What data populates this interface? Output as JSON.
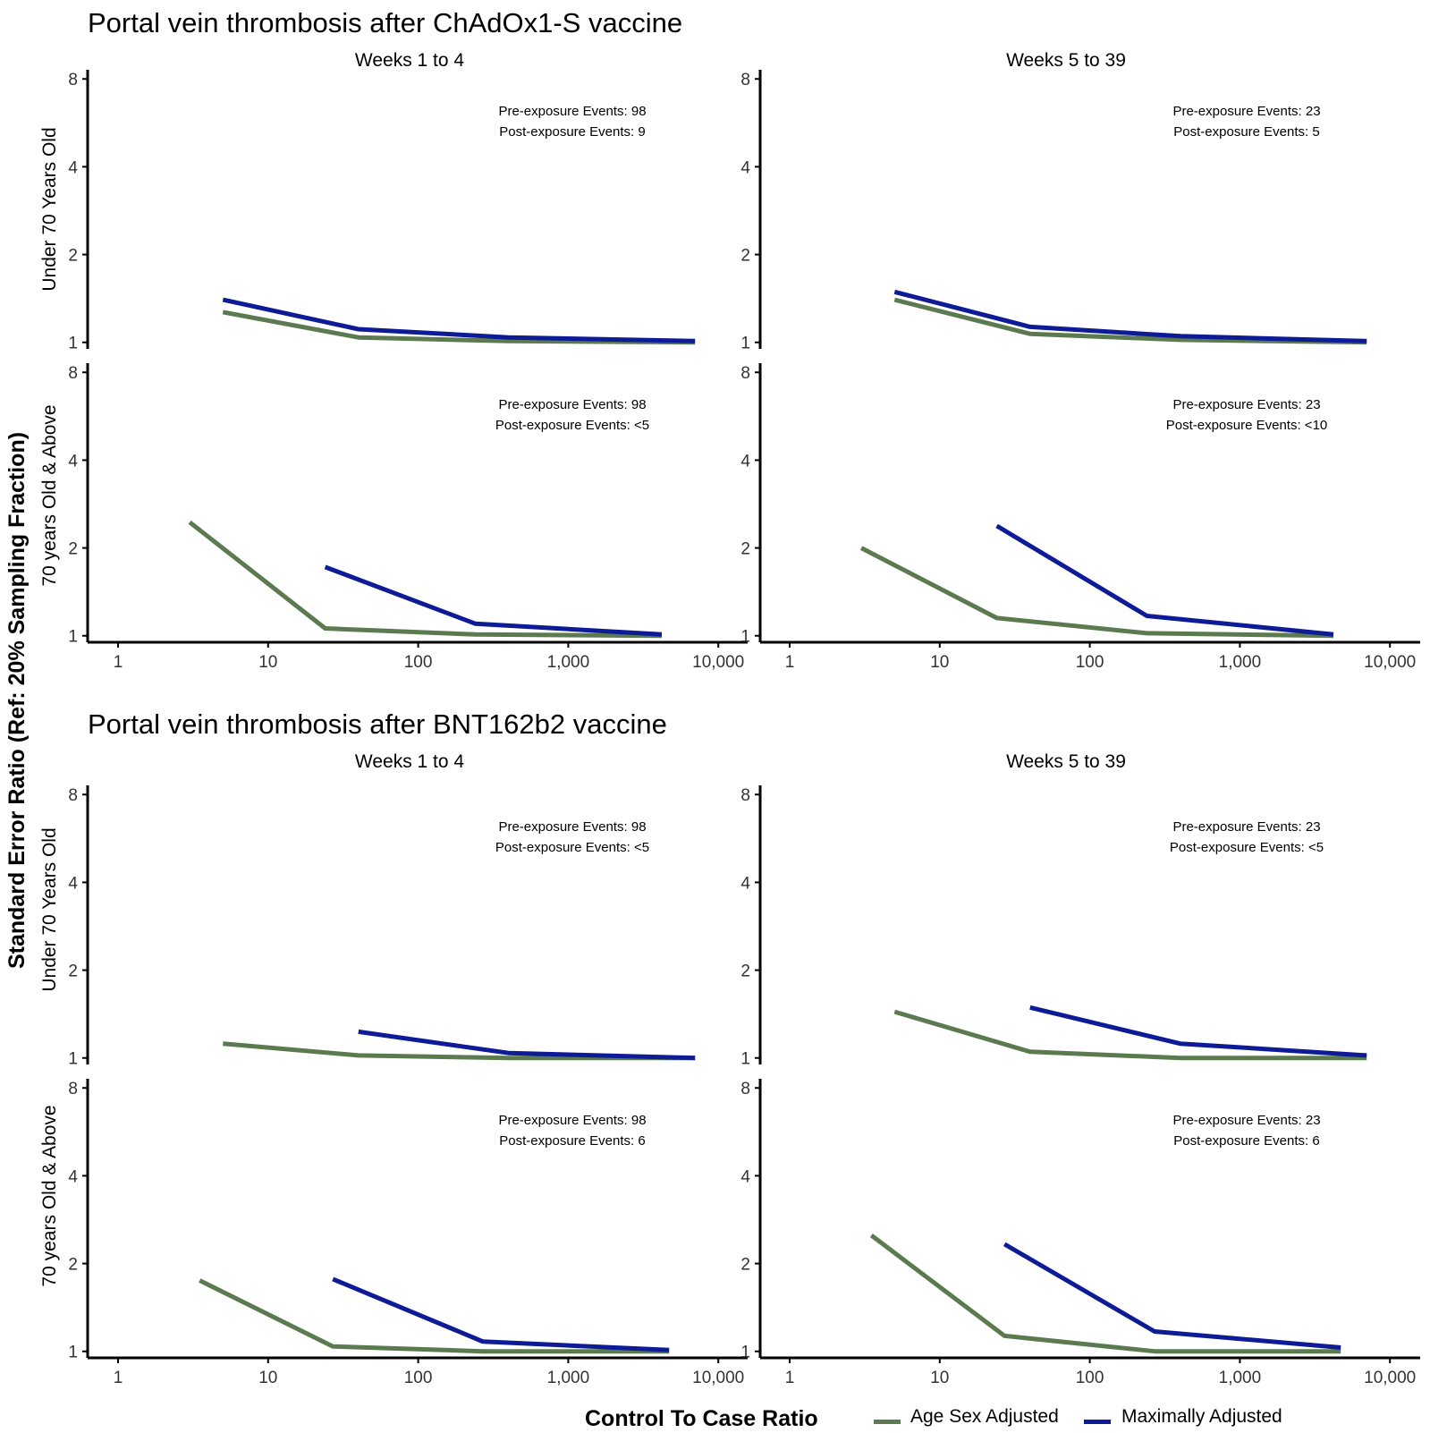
{
  "y_axis_title": "Standard Error Ratio (Ref: 20% Sampling Fraction)",
  "legend": {
    "title": "Control To Case Ratio",
    "items": [
      {
        "label": "Age Sex Adjusted",
        "color": "#5b7a4f"
      },
      {
        "label": "Maximally Adjusted",
        "color": "#0d1b96"
      }
    ]
  },
  "groups": [
    {
      "title": "Portal vein thrombosis after ChAdOx1-S vaccine"
    },
    {
      "title": "Portal vein thrombosis after BNT162b2 vaccine"
    }
  ],
  "columns": [
    "Weeks 1 to 4",
    "Weeks 5 to 39"
  ],
  "rows": [
    "Under 70 Years Old",
    "70 years Old & Above"
  ],
  "chart_data": {
    "type": "line",
    "x_scale": "log",
    "xlim": [
      1,
      10000
    ],
    "x_ticks": [
      1,
      10,
      100,
      1000,
      10000
    ],
    "x_tick_labels": [
      "1",
      "10",
      "100",
      "1,000",
      "10,000"
    ],
    "y_scale": "log",
    "ylim": [
      0.95,
      8.6
    ],
    "y_ticks": [
      1,
      2,
      4,
      8
    ],
    "y_tick_labels": [
      "1",
      "2",
      "4",
      "8"
    ],
    "panels": [
      {
        "group": 0,
        "column": 0,
        "row": 0,
        "annotation": [
          "Pre-exposure Events: 98",
          "Post-exposure Events: 9"
        ],
        "series": [
          {
            "name": "Age Sex Adjusted",
            "x": [
              5,
              40,
              400,
              7000
            ],
            "y": [
              1.27,
              1.04,
              1.01,
              1.0
            ]
          },
          {
            "name": "Maximally Adjusted",
            "x": [
              5,
              40,
              400,
              7000
            ],
            "y": [
              1.4,
              1.11,
              1.04,
              1.01
            ]
          }
        ]
      },
      {
        "group": 0,
        "column": 1,
        "row": 0,
        "annotation": [
          "Pre-exposure Events: 23",
          "Post-exposure Events: 5"
        ],
        "series": [
          {
            "name": "Age Sex Adjusted",
            "x": [
              5,
              40,
              400,
              7000
            ],
            "y": [
              1.4,
              1.07,
              1.02,
              1.0
            ]
          },
          {
            "name": "Maximally Adjusted",
            "x": [
              5,
              40,
              400,
              7000
            ],
            "y": [
              1.49,
              1.13,
              1.05,
              1.01
            ]
          }
        ]
      },
      {
        "group": 0,
        "column": 0,
        "row": 1,
        "annotation": [
          "Pre-exposure Events: 98",
          "Post-exposure Events: <5"
        ],
        "series": [
          {
            "name": "Age Sex Adjusted",
            "x": [
              3,
              24,
              240,
              4200
            ],
            "y": [
              2.45,
              1.06,
              1.01,
              1.0
            ]
          },
          {
            "name": "Maximally Adjusted",
            "x": [
              24,
              240,
              4200
            ],
            "y": [
              1.72,
              1.1,
              1.01
            ]
          }
        ]
      },
      {
        "group": 0,
        "column": 1,
        "row": 1,
        "annotation": [
          "Pre-exposure Events: 23",
          "Post-exposure Events: <10"
        ],
        "series": [
          {
            "name": "Age Sex Adjusted",
            "x": [
              3,
              24,
              240,
              4200
            ],
            "y": [
              2.0,
              1.15,
              1.02,
              1.0
            ]
          },
          {
            "name": "Maximally Adjusted",
            "x": [
              24,
              240,
              4200
            ],
            "y": [
              2.38,
              1.17,
              1.01
            ]
          }
        ]
      },
      {
        "group": 1,
        "column": 0,
        "row": 0,
        "annotation": [
          "Pre-exposure Events: 98",
          "Post-exposure Events: <5"
        ],
        "series": [
          {
            "name": "Age Sex Adjusted",
            "x": [
              5,
              40,
              400,
              7000
            ],
            "y": [
              1.12,
              1.02,
              1.0,
              1.0
            ]
          },
          {
            "name": "Maximally Adjusted",
            "x": [
              40,
              400,
              7000
            ],
            "y": [
              1.23,
              1.04,
              1.0
            ]
          }
        ]
      },
      {
        "group": 1,
        "column": 1,
        "row": 0,
        "annotation": [
          "Pre-exposure Events: 23",
          "Post-exposure Events: <5"
        ],
        "series": [
          {
            "name": "Age Sex Adjusted",
            "x": [
              5,
              40,
              400,
              7000
            ],
            "y": [
              1.44,
              1.05,
              1.0,
              1.0
            ]
          },
          {
            "name": "Maximally Adjusted",
            "x": [
              40,
              400,
              7000
            ],
            "y": [
              1.49,
              1.12,
              1.02
            ]
          }
        ]
      },
      {
        "group": 1,
        "column": 0,
        "row": 1,
        "annotation": [
          "Pre-exposure Events: 98",
          "Post-exposure Events: 6"
        ],
        "series": [
          {
            "name": "Age Sex Adjusted",
            "x": [
              3.5,
              27,
              270,
              4700
            ],
            "y": [
              1.75,
              1.04,
              1.0,
              1.0
            ]
          },
          {
            "name": "Maximally Adjusted",
            "x": [
              27,
              270,
              4700
            ],
            "y": [
              1.77,
              1.08,
              1.01
            ]
          }
        ]
      },
      {
        "group": 1,
        "column": 1,
        "row": 1,
        "annotation": [
          "Pre-exposure Events: 23",
          "Post-exposure Events: 6"
        ],
        "series": [
          {
            "name": "Age Sex Adjusted",
            "x": [
              3.5,
              27,
              270,
              4700
            ],
            "y": [
              2.5,
              1.13,
              1.0,
              1.0
            ]
          },
          {
            "name": "Maximally Adjusted",
            "x": [
              27,
              270,
              4700
            ],
            "y": [
              2.33,
              1.17,
              1.03
            ]
          }
        ]
      }
    ]
  }
}
